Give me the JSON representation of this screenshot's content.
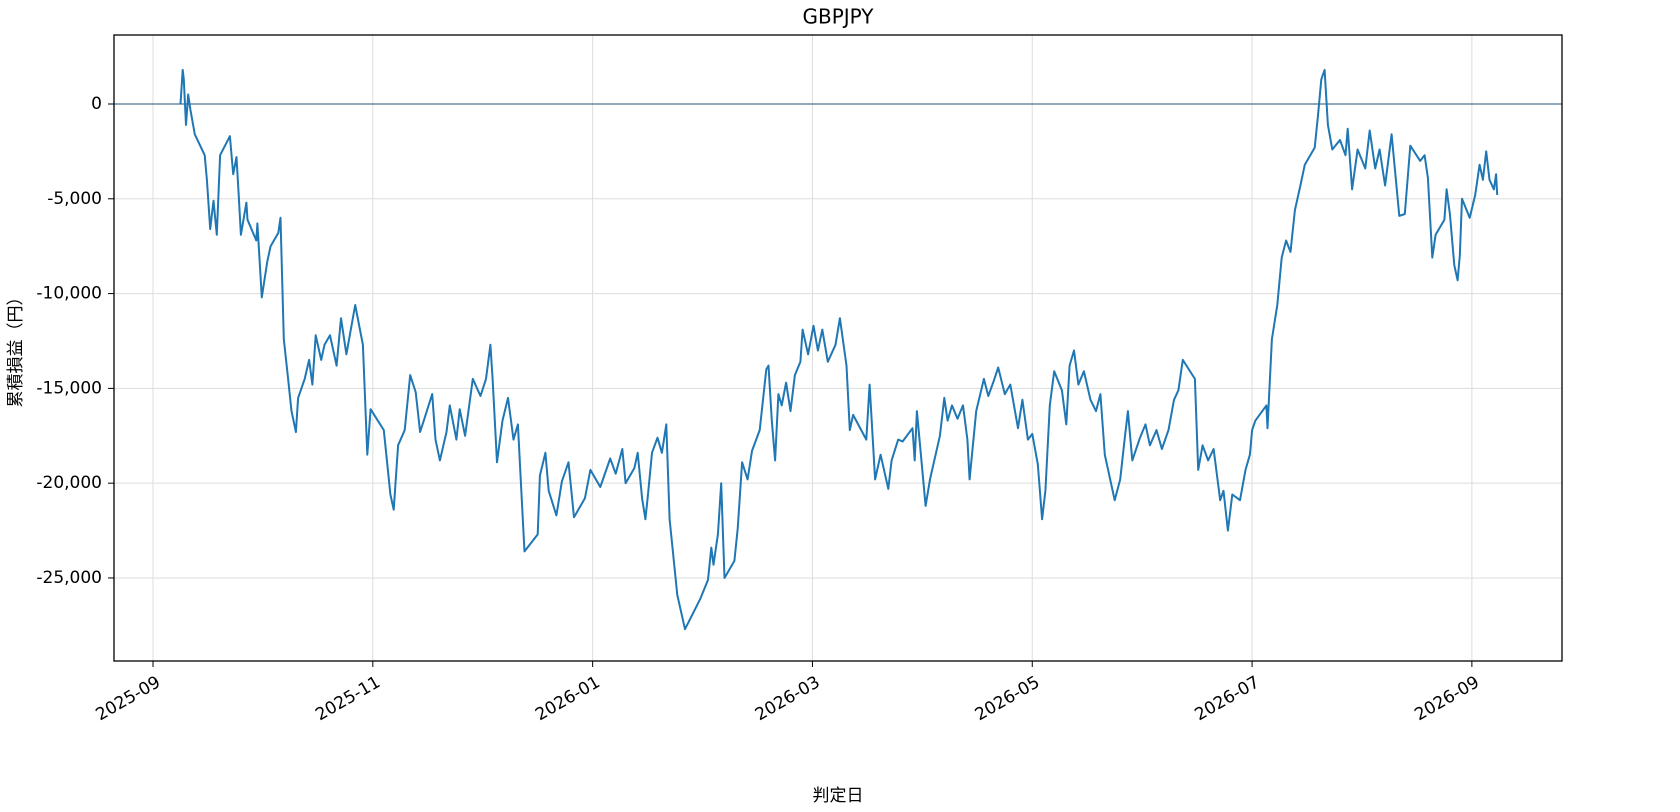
{
  "chart_data": {
    "type": "line",
    "title": "GBPJPY",
    "x_label": "判定日",
    "y_label": "累積損益（円）",
    "xlim": [
      -0.355,
      12.82
    ],
    "ylim": [
      -29380,
      3640
    ],
    "xticks": [
      {
        "value": 0,
        "label": "2025-09"
      },
      {
        "value": 2,
        "label": "2025-11"
      },
      {
        "value": 4,
        "label": "2026-01"
      },
      {
        "value": 6,
        "label": "2026-03"
      },
      {
        "value": 8,
        "label": "2026-05"
      },
      {
        "value": 10,
        "label": "2026-07"
      },
      {
        "value": 12,
        "label": "2026-09"
      }
    ],
    "yticks": [
      {
        "value": -25000,
        "label": "-25,000"
      },
      {
        "value": -20000,
        "label": "-20,000"
      },
      {
        "value": -15000,
        "label": "-15,000"
      },
      {
        "value": -10000,
        "label": "-10,000"
      },
      {
        "value": -5000,
        "label": "-5,000"
      },
      0
    ],
    "grid": true,
    "hline": 0,
    "hline_color": "#4d7390",
    "series": [
      {
        "color": "#1f77b4",
        "x": [
          0.25,
          0.27,
          0.28,
          0.3,
          0.32,
          0.34,
          0.38,
          0.47,
          0.49,
          0.52,
          0.55,
          0.58,
          0.61,
          0.7,
          0.73,
          0.76,
          0.78,
          0.8,
          0.85,
          0.86,
          0.94,
          0.95,
          0.99,
          1.04,
          1.07,
          1.14,
          1.16,
          1.19,
          1.22,
          1.26,
          1.3,
          1.32,
          1.38,
          1.42,
          1.45,
          1.48,
          1.53,
          1.56,
          1.61,
          1.67,
          1.71,
          1.76,
          1.84,
          1.91,
          1.95,
          1.98,
          2.1,
          2.16,
          2.19,
          2.23,
          2.29,
          2.34,
          2.39,
          2.43,
          2.48,
          2.54,
          2.57,
          2.61,
          2.67,
          2.7,
          2.76,
          2.79,
          2.84,
          2.91,
          2.98,
          3.03,
          3.07,
          3.09,
          3.13,
          3.18,
          3.23,
          3.28,
          3.32,
          3.36,
          3.38,
          3.5,
          3.52,
          3.57,
          3.6,
          3.67,
          3.72,
          3.78,
          3.83,
          3.93,
          3.98,
          4.07,
          4.16,
          4.21,
          4.27,
          4.3,
          4.38,
          4.41,
          4.45,
          4.48,
          4.5,
          4.54,
          4.59,
          4.63,
          4.67,
          4.7,
          4.77,
          4.84,
          4.98,
          5.05,
          5.08,
          5.1,
          5.14,
          5.17,
          5.2,
          5.29,
          5.32,
          5.36,
          5.41,
          5.45,
          5.52,
          5.58,
          5.6,
          5.63,
          5.66,
          5.69,
          5.72,
          5.76,
          5.8,
          5.84,
          5.89,
          5.91,
          5.96,
          6.01,
          6.05,
          6.09,
          6.14,
          6.21,
          6.25,
          6.31,
          6.34,
          6.37,
          6.49,
          6.52,
          6.57,
          6.62,
          6.69,
          6.72,
          6.78,
          6.82,
          6.91,
          6.93,
          6.95,
          7.03,
          7.07,
          7.16,
          7.2,
          7.23,
          7.27,
          7.32,
          7.37,
          7.41,
          7.43,
          7.49,
          7.56,
          7.6,
          7.65,
          7.69,
          7.75,
          7.8,
          7.87,
          7.91,
          7.96,
          8.0,
          8.05,
          8.09,
          8.12,
          8.16,
          8.2,
          8.27,
          8.31,
          8.34,
          8.38,
          8.42,
          8.47,
          8.53,
          8.58,
          8.62,
          8.66,
          8.75,
          8.8,
          8.84,
          8.87,
          8.91,
          8.98,
          9.03,
          9.07,
          9.13,
          9.18,
          9.24,
          9.29,
          9.33,
          9.37,
          9.48,
          9.51,
          9.55,
          9.6,
          9.65,
          9.71,
          9.74,
          9.78,
          9.82,
          9.89,
          9.94,
          9.98,
          10.0,
          10.03,
          10.13,
          10.14,
          10.18,
          10.23,
          10.27,
          10.31,
          10.35,
          10.39,
          10.44,
          10.48,
          10.57,
          10.6,
          10.63,
          10.66,
          10.69,
          10.73,
          10.8,
          10.85,
          10.87,
          10.91,
          10.96,
          11.03,
          11.07,
          11.12,
          11.16,
          11.21,
          11.27,
          11.34,
          11.39,
          11.44,
          11.53,
          11.57,
          11.6,
          11.64,
          11.67,
          11.75,
          11.77,
          11.8,
          11.84,
          11.87,
          11.89,
          11.91,
          11.98,
          12.03,
          12.07,
          12.1,
          12.13,
          12.16,
          12.2,
          12.22,
          12.23
        ],
        "values": [
          0,
          1800,
          1300,
          -1100,
          500,
          -300,
          -1600,
          -2700,
          -4000,
          -6600,
          -5100,
          -6900,
          -2700,
          -1700,
          -3700,
          -2800,
          -4800,
          -6900,
          -5200,
          -6100,
          -7200,
          -6300,
          -10200,
          -8300,
          -7500,
          -6800,
          -6000,
          -12400,
          -14000,
          -16200,
          -17300,
          -15500,
          -14500,
          -13500,
          -14800,
          -12200,
          -13500,
          -12700,
          -12200,
          -13800,
          -11300,
          -13200,
          -10600,
          -12700,
          -18500,
          -16100,
          -17200,
          -20600,
          -21400,
          -18000,
          -17200,
          -14300,
          -15200,
          -17300,
          -16400,
          -15300,
          -17700,
          -18800,
          -17300,
          -15900,
          -17700,
          -16100,
          -17500,
          -14500,
          -15400,
          -14500,
          -12700,
          -14500,
          -18900,
          -16700,
          -15500,
          -17700,
          -16900,
          -21400,
          -23600,
          -22700,
          -19600,
          -18400,
          -20400,
          -21700,
          -19900,
          -18900,
          -21800,
          -20800,
          -19300,
          -20200,
          -18700,
          -19500,
          -18200,
          -20000,
          -19200,
          -18400,
          -20800,
          -21900,
          -20800,
          -18400,
          -17600,
          -18400,
          -16900,
          -21900,
          -25900,
          -27700,
          -26100,
          -25100,
          -23400,
          -24300,
          -22700,
          -20000,
          -25000,
          -24100,
          -22400,
          -18900,
          -19800,
          -18300,
          -17200,
          -14000,
          -13800,
          -16700,
          -18800,
          -15300,
          -15900,
          -14700,
          -16200,
          -14300,
          -13600,
          -11900,
          -13200,
          -11700,
          -13000,
          -11900,
          -13600,
          -12700,
          -11300,
          -13800,
          -17200,
          -16400,
          -17700,
          -14800,
          -19800,
          -18500,
          -20300,
          -18800,
          -17700,
          -17800,
          -17100,
          -18800,
          -16200,
          -21200,
          -19800,
          -17500,
          -15500,
          -16700,
          -15900,
          -16600,
          -15900,
          -17700,
          -19800,
          -16200,
          -14500,
          -15400,
          -14600,
          -13900,
          -15300,
          -14800,
          -17100,
          -15600,
          -17700,
          -17400,
          -19000,
          -21900,
          -20400,
          -15900,
          -14100,
          -15100,
          -16900,
          -13800,
          -13000,
          -14800,
          -14100,
          -15600,
          -16200,
          -15300,
          -18500,
          -20900,
          -19800,
          -17700,
          -16200,
          -18800,
          -17600,
          -16900,
          -18000,
          -17200,
          -18200,
          -17200,
          -15600,
          -15100,
          -13500,
          -14500,
          -19300,
          -18000,
          -18800,
          -18200,
          -20900,
          -20400,
          -22500,
          -20600,
          -20900,
          -19300,
          -18500,
          -17200,
          -16700,
          -15900,
          -17100,
          -12400,
          -10600,
          -8100,
          -7200,
          -7800,
          -5600,
          -4300,
          -3200,
          -2300,
          -600,
          1300,
          1800,
          -1100,
          -2400,
          -1900,
          -2700,
          -1300,
          -4500,
          -2400,
          -3400,
          -1400,
          -3400,
          -2400,
          -4300,
          -1600,
          -5900,
          -5800,
          -2200,
          -3000,
          -2700,
          -3900,
          -8100,
          -6900,
          -6100,
          -4500,
          -5800,
          -8500,
          -9300,
          -8000,
          -5000,
          -6000,
          -4800,
          -3200,
          -4000,
          -2500,
          -4000,
          -4500,
          -3700,
          -4800
        ]
      }
    ]
  }
}
